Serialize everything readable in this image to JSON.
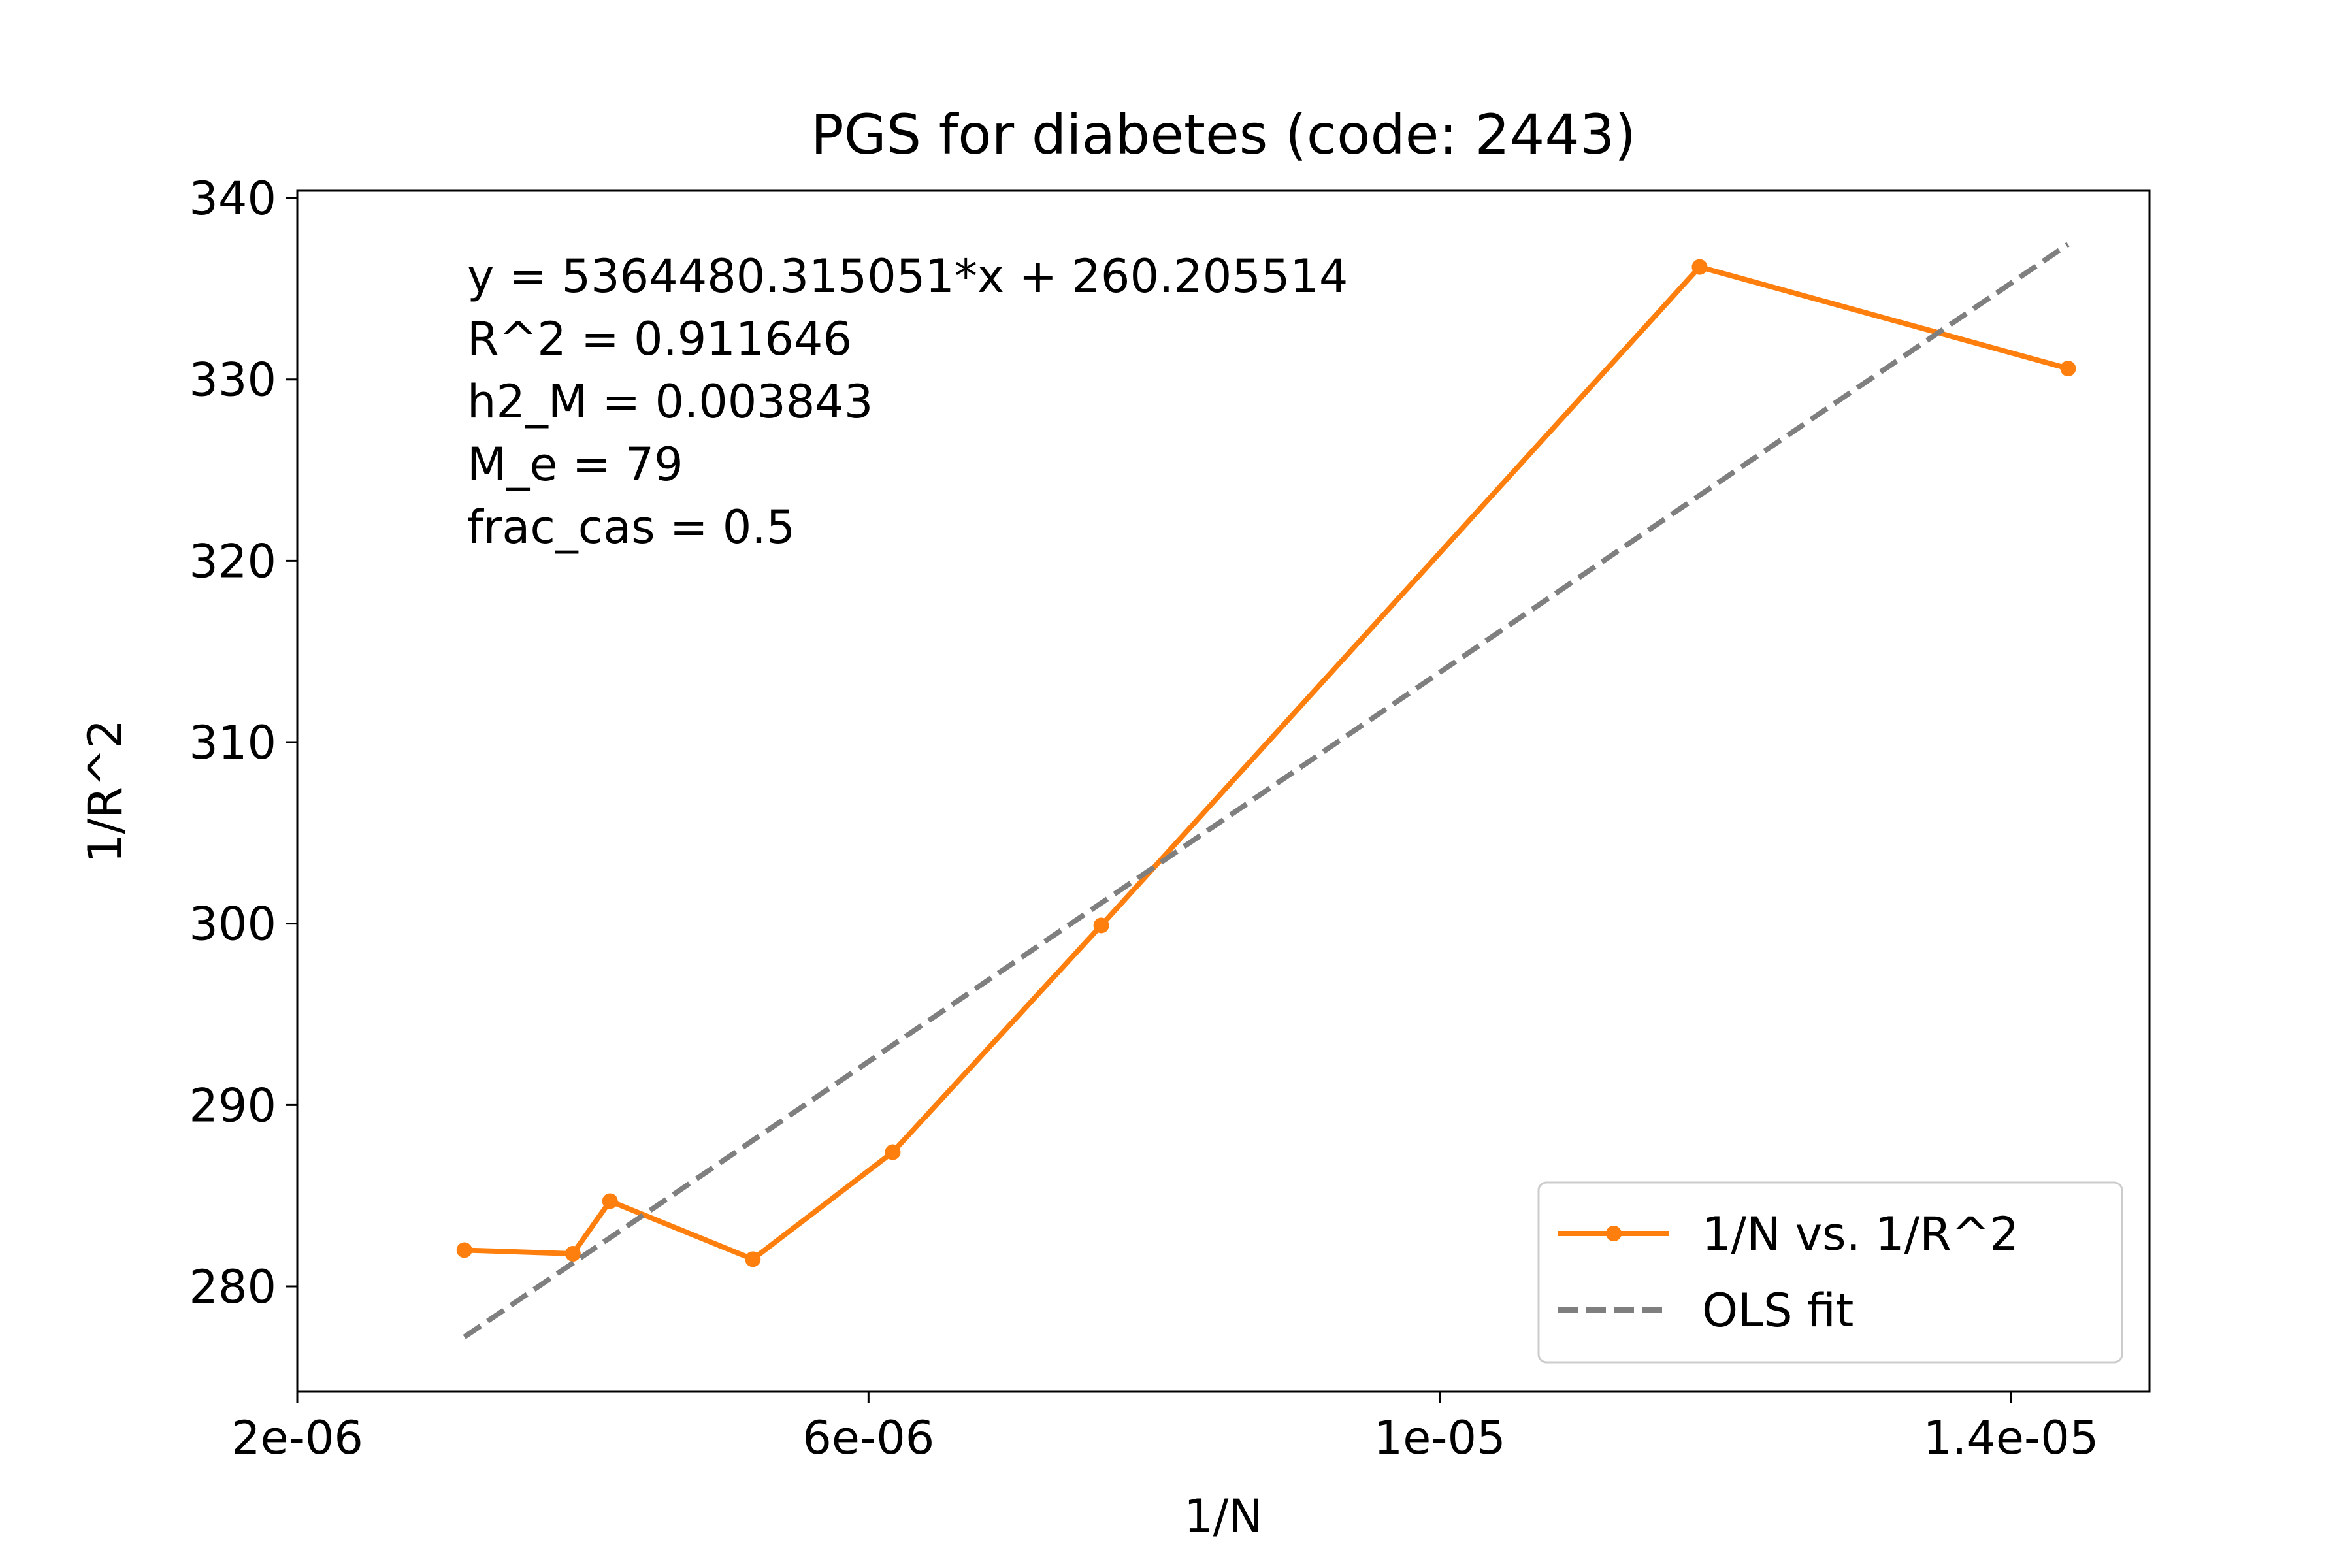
{
  "chart_data": {
    "type": "line",
    "title": "PGS for diabetes (code: 2443)",
    "xlabel": "1/N",
    "ylabel": "1/R^2",
    "xlim": [
      2e-06,
      1.497e-05
    ],
    "ylim": [
      274.2,
      340.4
    ],
    "x_ticks": [
      {
        "value": 2e-06,
        "label": "2e-06"
      },
      {
        "value": 6e-06,
        "label": "6e-06"
      },
      {
        "value": 1e-05,
        "label": "1e-05"
      },
      {
        "value": 1.4e-05,
        "label": "1.4e-05"
      }
    ],
    "y_ticks": [
      {
        "value": 280,
        "label": "280"
      },
      {
        "value": 290,
        "label": "290"
      },
      {
        "value": 300,
        "label": "300"
      },
      {
        "value": 310,
        "label": "310"
      },
      {
        "value": 320,
        "label": "320"
      },
      {
        "value": 330,
        "label": "330"
      },
      {
        "value": 340,
        "label": "340"
      }
    ],
    "series": [
      {
        "name": "1/N vs. 1/R^2",
        "style": "solid-marker",
        "color": "#ff7f0e",
        "x": [
          3.17e-06,
          3.93e-06,
          4.19e-06,
          5.19e-06,
          6.17e-06,
          7.63e-06,
          1.182e-05,
          1.44e-05
        ],
        "y": [
          282.0,
          281.8,
          284.7,
          281.5,
          287.4,
          299.9,
          336.2,
          330.6
        ]
      },
      {
        "name": "OLS fit",
        "style": "dashed",
        "color": "#7f7f7f",
        "x": [
          3.17e-06,
          1.44e-05
        ],
        "y": [
          277.21,
          337.45
        ]
      }
    ],
    "annotations": [
      "y = 5364480.315051*x + 260.205514",
      "R^2 = 0.911646",
      "h2_M = 0.003843",
      "M_e = 79",
      "frac_cas = 0.5"
    ],
    "grid": false,
    "legend_position": "lower-right"
  }
}
